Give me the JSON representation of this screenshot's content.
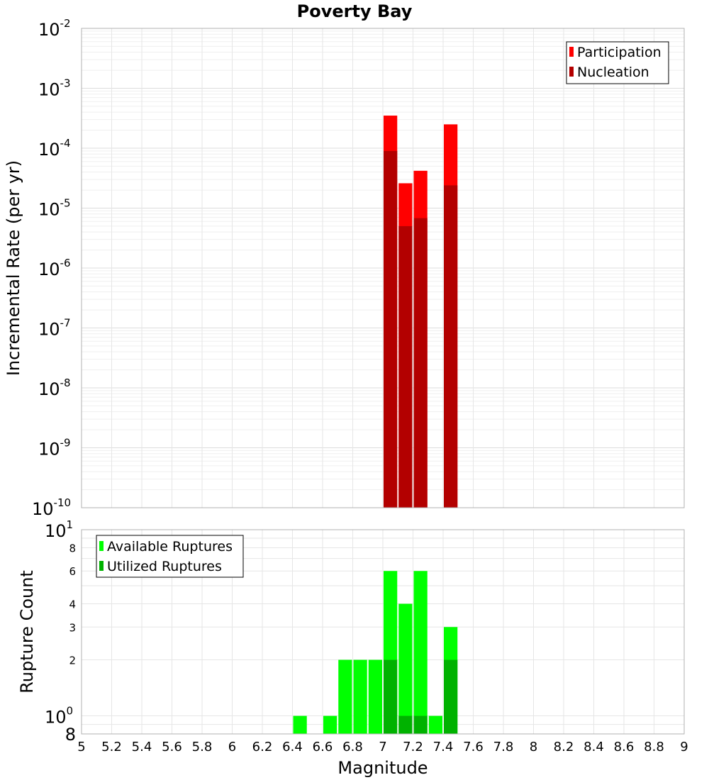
{
  "chart_data": [
    {
      "type": "bar",
      "title": "Poverty Bay",
      "xlabel": "",
      "ylabel": "Incremental Rate (per yr)",
      "yscale": "log",
      "ylim": [
        1e-10,
        0.01
      ],
      "xlim": [
        5,
        9
      ],
      "bin_width": 0.1,
      "grid": true,
      "legend_placement": "top-right",
      "y_tick_exponents": [
        "-10",
        "-9",
        "-8",
        "-7",
        "-6",
        "-5",
        "-4",
        "-3",
        "-2"
      ],
      "y_tick_base": "10",
      "series": [
        {
          "name": "Participation",
          "color": "#ff0000",
          "x": [
            7.05,
            7.15,
            7.25,
            7.45
          ],
          "values": [
            0.00035,
            2.6e-05,
            4.2e-05,
            0.00025
          ]
        },
        {
          "name": "Nucleation",
          "color": "#b30000",
          "x": [
            7.05,
            7.15,
            7.25,
            7.45
          ],
          "values": [
            9e-05,
            5e-06,
            6.8e-06,
            2.4e-05
          ]
        }
      ]
    },
    {
      "type": "bar",
      "title": "",
      "xlabel": "Magnitude",
      "ylabel": "Rupture Count",
      "yscale": "log",
      "ylim": [
        0.8,
        10
      ],
      "xlim": [
        5,
        9
      ],
      "bin_width": 0.1,
      "grid": true,
      "legend_placement": "top-left",
      "x_ticks": [
        "5",
        "5.2",
        "5.4",
        "5.6",
        "5.8",
        "6",
        "6.2",
        "6.4",
        "6.6",
        "6.8",
        "7",
        "7.2",
        "7.4",
        "7.6",
        "7.8",
        "8",
        "8.2",
        "8.4",
        "8.6",
        "8.8",
        "9"
      ],
      "y_ticks_small": [
        "2",
        "3",
        "4",
        "6",
        "8"
      ],
      "y_tick_major_top": {
        "base": "10",
        "exp": "1"
      },
      "y_tick_major_one": {
        "base": "10",
        "exp": "0"
      },
      "y_tick_bottom": "8",
      "series": [
        {
          "name": "Available Ruptures",
          "color": "#00ff00",
          "x": [
            6.45,
            6.65,
            6.75,
            6.85,
            6.95,
            7.05,
            7.15,
            7.25,
            7.35,
            7.45
          ],
          "values": [
            1,
            1,
            2,
            2,
            2,
            6,
            4,
            6,
            1,
            3
          ]
        },
        {
          "name": "Utilized Ruptures",
          "color": "#00b200",
          "x": [
            7.05,
            7.15,
            7.25,
            7.45
          ],
          "values": [
            2,
            1,
            1,
            2
          ]
        }
      ]
    }
  ]
}
